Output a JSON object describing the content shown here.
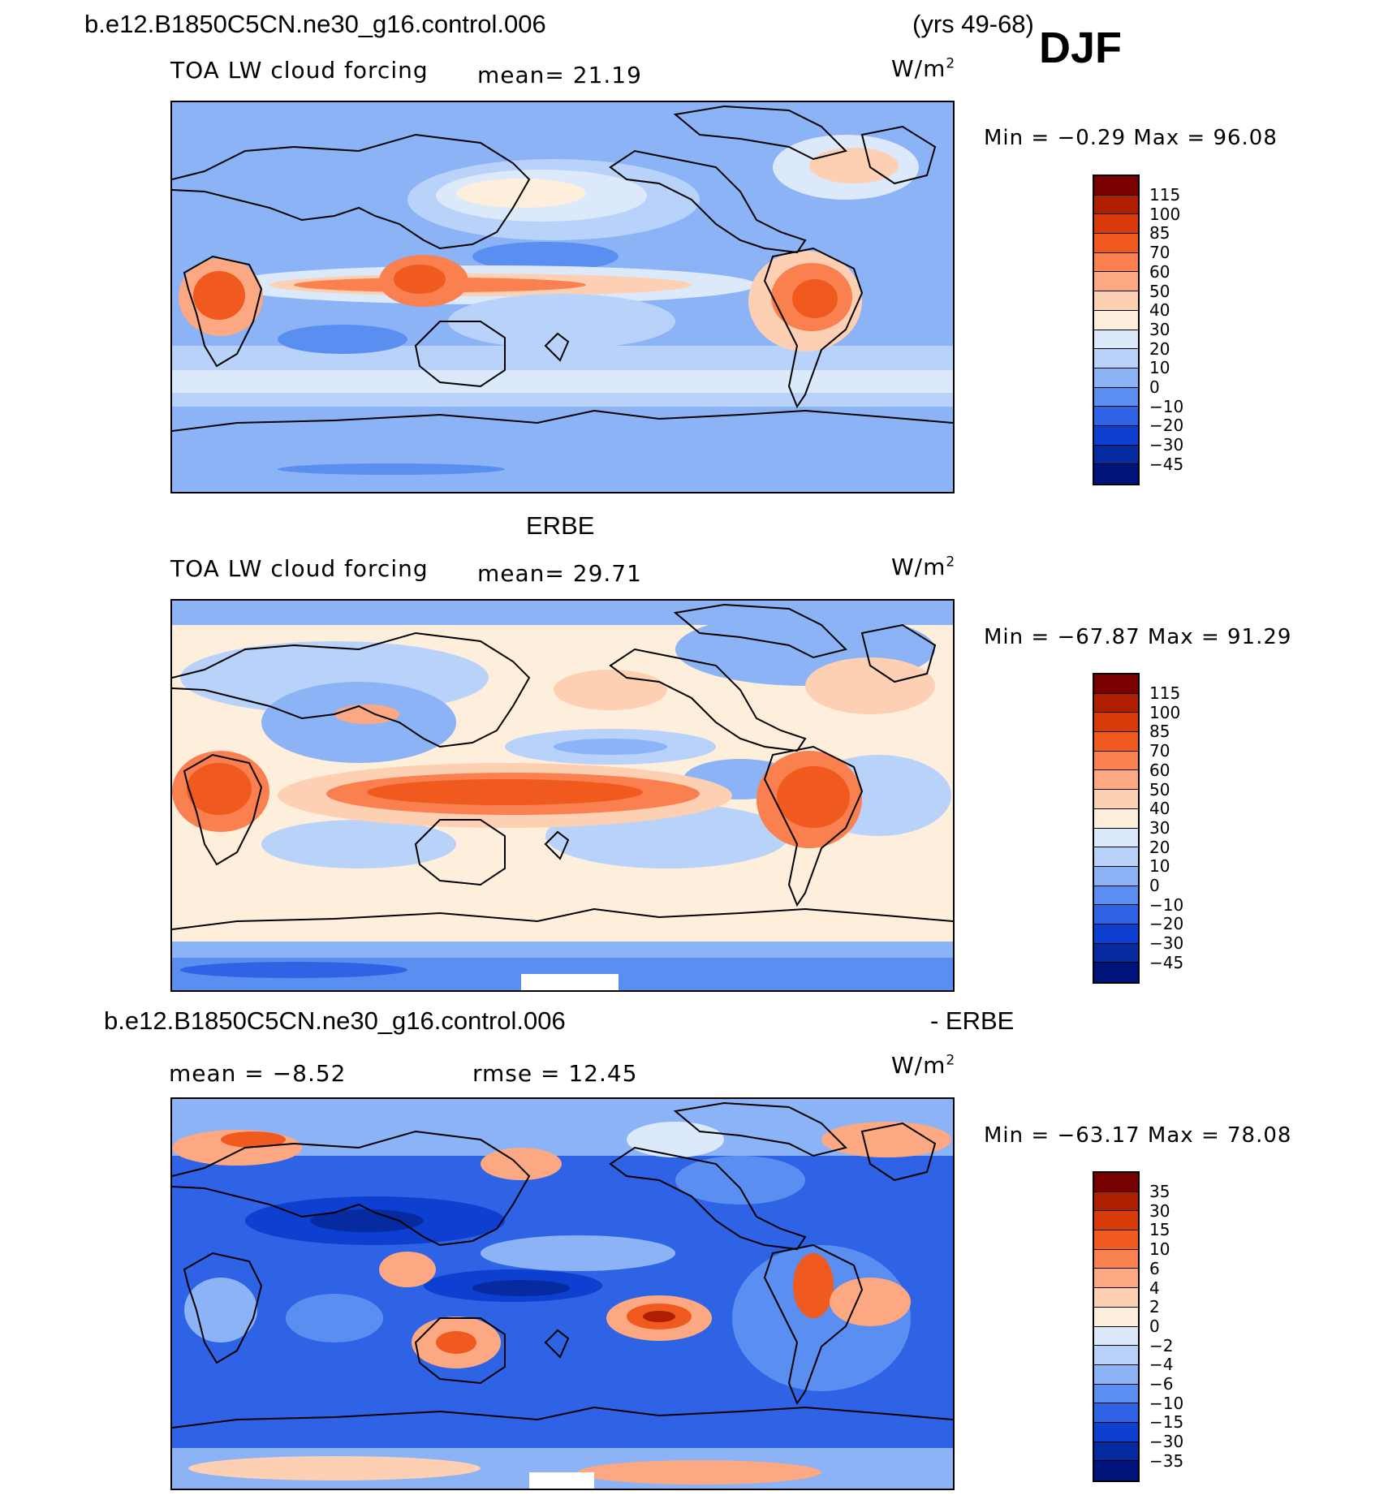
{
  "header": {
    "case": "b.e12.B1850C5CN.ne30_g16.control.006",
    "years": "(yrs 49-68)",
    "season": "DJF"
  },
  "panel1": {
    "variable": "TOA LW cloud forcing",
    "mean": "mean=  21.19",
    "units": "W/m",
    "units_sup": "2",
    "minmax": "Min =  −0.29 Max =  96.08"
  },
  "panel2": {
    "title": "ERBE",
    "variable": "TOA LW cloud forcing",
    "mean": "mean=  29.71",
    "units": "W/m",
    "units_sup": "2",
    "minmax": "Min = −67.87 Max =  91.29"
  },
  "panel3": {
    "case": "b.e12.B1850C5CN.ne30_g16.control.006",
    "minus": "- ERBE",
    "mean": "mean =  −8.52",
    "rmse": "rmse =  12.45",
    "units": "W/m",
    "units_sup": "2",
    "minmax": "Min = −63.17 Max =  78.08"
  },
  "colorbar_abs": {
    "labels": [
      "115",
      "100",
      "85",
      "70",
      "60",
      "50",
      "40",
      "30",
      "20",
      "10",
      "0",
      "−10",
      "−20",
      "−30",
      "−45"
    ],
    "colors": [
      "#780000",
      "#b01e00",
      "#d83a0a",
      "#f05a1e",
      "#fa8050",
      "#fca882",
      "#fdd0b4",
      "#feeedc",
      "#dbe9fa",
      "#b8d2fa",
      "#8cb3f5",
      "#5a8ef0",
      "#2e63e6",
      "#0d3fd0",
      "#062ba0",
      "#00137a"
    ]
  },
  "colorbar_diff": {
    "labels": [
      "35",
      "30",
      "15",
      "10",
      "6",
      "4",
      "2",
      "0",
      "−2",
      "−4",
      "−6",
      "−10",
      "−15",
      "−30",
      "−35"
    ],
    "colors": [
      "#780000",
      "#b01e00",
      "#d83a0a",
      "#f05a1e",
      "#fa8050",
      "#fca882",
      "#fdd0b4",
      "#feeedc",
      "#dbe9fa",
      "#b8d2fa",
      "#8cb3f5",
      "#5a8ef0",
      "#2e63e6",
      "#0d3fd0",
      "#062ba0",
      "#00137a"
    ]
  }
}
